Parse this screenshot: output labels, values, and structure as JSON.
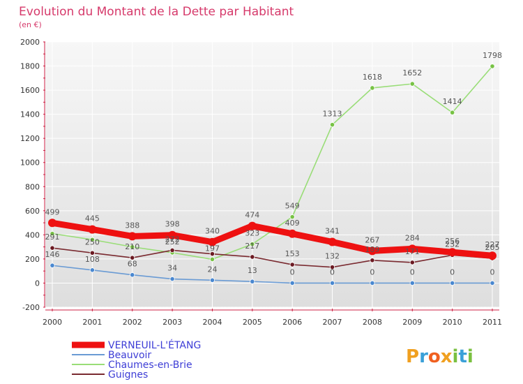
{
  "chart_data": {
    "type": "line",
    "title": "Evolution du Montant de la Dette par Habitant",
    "subtitle": "(en €)",
    "categories": [
      "2000",
      "2001",
      "2002",
      "2003",
      "2004",
      "2005",
      "2006",
      "2007",
      "2008",
      "2009",
      "2010",
      "2011"
    ],
    "ylim": [
      -200,
      2000
    ],
    "yticks": [
      "-200",
      "0",
      "200",
      "400",
      "600",
      "800",
      "1000",
      "1200",
      "1400",
      "1600",
      "1800",
      "2000"
    ],
    "grid": true,
    "legend_position": "bottom-left",
    "series": [
      {
        "name": "Chaumes-en-Brie",
        "color": "#99dd77",
        "marker": "#77c244",
        "values": [
          410,
          360,
          300,
          252,
          197,
          323,
          549,
          1313,
          1618,
          1652,
          1414,
          1798
        ],
        "labels": [
          "",
          "",
          "",
          "252",
          "197",
          "323",
          "549",
          "1313",
          "1618",
          "1652",
          "1414",
          "1798"
        ]
      },
      {
        "name": "Guignes",
        "color": "#7a2a30",
        "marker": "#6b1a22",
        "values": [
          291,
          250,
          210,
          272,
          242,
          217,
          153,
          132,
          189,
          171,
          232,
          205
        ],
        "labels": [
          "291",
          "250",
          "210",
          "272",
          "",
          "217",
          "153",
          "132",
          "189",
          "171",
          "232",
          "205"
        ]
      },
      {
        "name": "Beauvoir",
        "color": "#6a9bd4",
        "marker": "#4a88d0",
        "values": [
          146,
          108,
          68,
          34,
          24,
          13,
          0,
          0,
          0,
          0,
          0,
          0
        ],
        "labels": [
          "146",
          "108",
          "68",
          "34",
          "24",
          "13",
          "0",
          "0",
          "0",
          "0",
          "0",
          "0"
        ]
      },
      {
        "name": "VERNEUIL-L'ÉTANG",
        "color": "#ee1111",
        "marker": "#ee1111",
        "bold": true,
        "values": [
          499,
          445,
          388,
          398,
          340,
          474,
          409,
          341,
          267,
          284,
          256,
          227
        ],
        "labels": [
          "499",
          "445",
          "388",
          "398",
          "340",
          "474",
          "409",
          "341",
          "267",
          "284",
          "256",
          "227"
        ]
      }
    ]
  },
  "legend": {
    "items": [
      {
        "name": "VERNEUIL-L'ÉTANG",
        "color": "#ee1111"
      },
      {
        "name": "Beauvoir",
        "color": "#6a9bd4"
      },
      {
        "name": "Chaumes-en-Brie",
        "color": "#99dd77"
      },
      {
        "name": "Guignes",
        "color": "#7a2a30"
      }
    ]
  },
  "logo": {
    "text": "Proxiti"
  }
}
